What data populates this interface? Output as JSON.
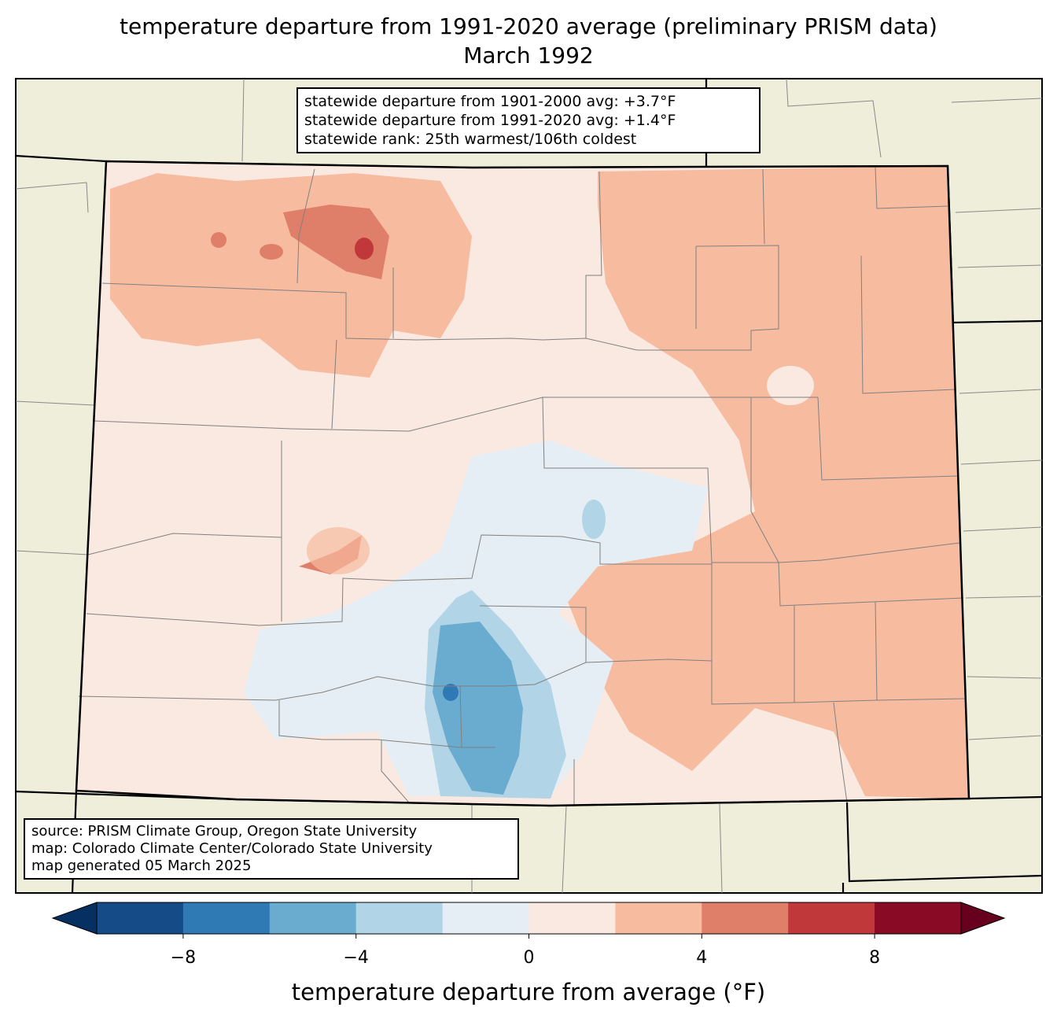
{
  "title": {
    "line1": "temperature departure from 1991-2020 average (preliminary PRISM data)",
    "line2": "March 1992"
  },
  "stats_box": {
    "line1": "statewide departure from 1901-2000 avg: +3.7°F",
    "line2": "statewide departure from 1991-2020 avg: +1.4°F",
    "line3": "statewide rank: 25th warmest/106th coldest"
  },
  "source_box": {
    "line1": "source: PRISM Climate Group, Oregon State University",
    "line2": "map: Colorado Climate Center/Colorado State University",
    "line3": "map generated 05 March 2025"
  },
  "colorbar": {
    "label": "temperature departure from average (°F)",
    "min": -10,
    "max": 10,
    "step": 2,
    "extend_low_color": "#053061",
    "extend_high_color": "#67001f",
    "colors": [
      "#154b87",
      "#2f79b5",
      "#6aacd0",
      "#b1d4e7",
      "#e5eef4",
      "#f9e9e0",
      "#f7bba0",
      "#e07f69",
      "#c0383a",
      "#890a25"
    ],
    "ticks": [
      {
        "value": -8,
        "label": "−8"
      },
      {
        "value": -4,
        "label": "−4"
      },
      {
        "value": 0,
        "label": "0"
      },
      {
        "value": 4,
        "label": "4"
      },
      {
        "value": 8,
        "label": "8"
      }
    ]
  },
  "colors": {
    "land": "#efeedb",
    "county_line": "#808080"
  }
}
